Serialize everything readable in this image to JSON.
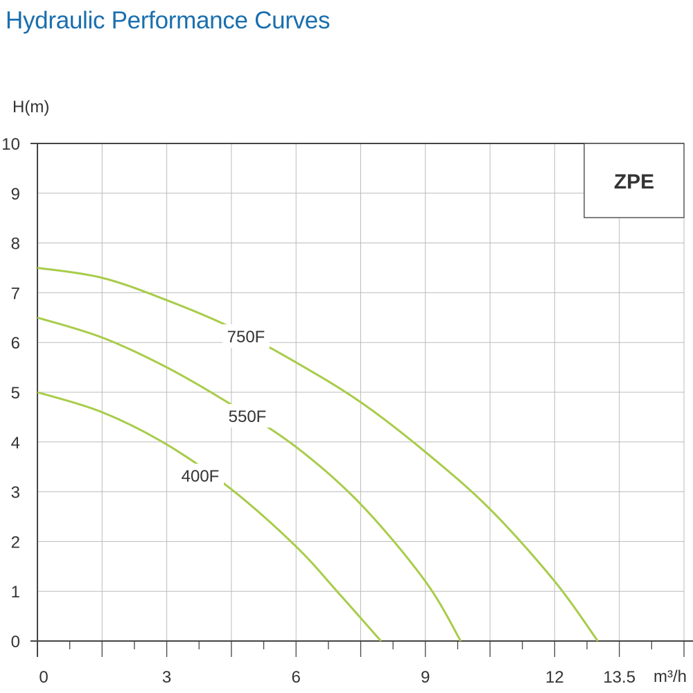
{
  "title": "Hydraulic Performance Curves",
  "chart_data": {
    "type": "line",
    "title": "Hydraulic Performance Curves",
    "ylabel": "H(m)",
    "xlabel": "m³/h",
    "badge": "ZPE",
    "xlim": [
      0,
      15
    ],
    "ylim": [
      0,
      10
    ],
    "grid": true,
    "xgrid_step": 1.5,
    "x_ticks": [
      0,
      3,
      6,
      9,
      12,
      13.5
    ],
    "y_ticks": [
      0,
      1,
      2,
      3,
      4,
      5,
      6,
      7,
      8,
      9,
      10
    ],
    "curve_color": "#a8cc4a",
    "series": [
      {
        "name": "750F",
        "x": [
          0,
          1.5,
          3,
          4.5,
          6,
          7.5,
          9,
          10.5,
          12,
          13.0
        ],
        "y": [
          7.5,
          7.3,
          6.85,
          6.3,
          5.6,
          4.8,
          3.8,
          2.65,
          1.2,
          0
        ]
      },
      {
        "name": "550F",
        "x": [
          0,
          1.5,
          3,
          4.5,
          6,
          7.5,
          9,
          9.82
        ],
        "y": [
          6.5,
          6.1,
          5.5,
          4.75,
          3.9,
          2.75,
          1.2,
          0
        ]
      },
      {
        "name": "400F",
        "x": [
          0,
          1.5,
          3,
          4.5,
          6,
          7.0,
          7.97
        ],
        "y": [
          5.0,
          4.6,
          3.95,
          3.05,
          1.9,
          0.95,
          0
        ]
      }
    ]
  }
}
